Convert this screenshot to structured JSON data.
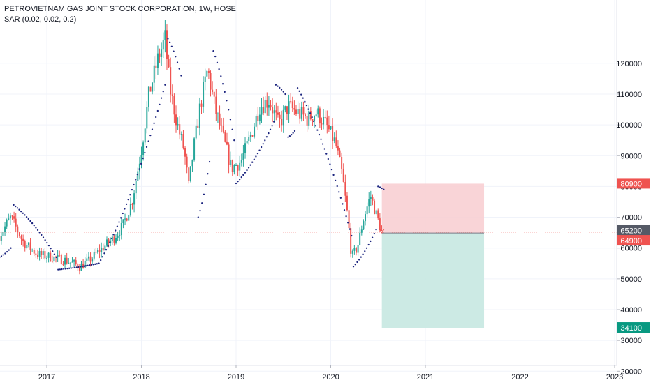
{
  "header": {
    "title": "PETROVIETNAM GAS JOINT STOCK CORPORATION, 1W, HOSE",
    "indicator": "SAR (0.02, 0.02, 0.2)"
  },
  "colors": {
    "up": "#26a69a",
    "down": "#ef5350",
    "sar": "#1a237e",
    "stop_fill": "#f8cdd0",
    "target_fill": "#c6e8e1",
    "grid": "#f0f3fa",
    "axis_text": "#131722",
    "red_tag": "#ef5350",
    "gray_tag": "#555a66",
    "green_tag": "#089981",
    "price_line": "#ef5350"
  },
  "chart_data": {
    "type": "candlestick",
    "title": "PETROVIETNAM GAS JOINT STOCK CORPORATION, 1W, HOSE",
    "x_ticks": [
      "2017",
      "2018",
      "2019",
      "2020",
      "2021",
      "2022",
      "2023"
    ],
    "x_tick_years": [
      2017,
      2018,
      2019,
      2020,
      2021,
      2022,
      2023
    ],
    "x_range": [
      2016.5,
      2023.05
    ],
    "y_ticks": [
      20000,
      30000,
      40000,
      50000,
      60000,
      70000,
      80000,
      90000,
      100000,
      110000,
      120000
    ],
    "y_tick_labels": [
      "20000",
      "30000",
      "40000",
      "50000",
      "60000",
      "70000",
      "80000",
      "90000",
      "100000",
      "110000",
      "120000"
    ],
    "ylim": [
      10000,
      130000
    ],
    "price_keypoints": [
      [
        2016.5,
        64000
      ],
      [
        2016.62,
        70000
      ],
      [
        2016.75,
        62000
      ],
      [
        2016.9,
        58000
      ],
      [
        2017.05,
        57000
      ],
      [
        2017.2,
        56000
      ],
      [
        2017.35,
        54000
      ],
      [
        2017.45,
        56000
      ],
      [
        2017.55,
        59000
      ],
      [
        2017.7,
        63000
      ],
      [
        2017.8,
        67000
      ],
      [
        2017.9,
        75000
      ],
      [
        2018.0,
        92000
      ],
      [
        2018.08,
        110000
      ],
      [
        2018.18,
        122000
      ],
      [
        2018.25,
        128000
      ],
      [
        2018.3,
        112000
      ],
      [
        2018.38,
        100000
      ],
      [
        2018.45,
        92000
      ],
      [
        2018.5,
        80000
      ],
      [
        2018.55,
        92000
      ],
      [
        2018.62,
        106000
      ],
      [
        2018.7,
        118000
      ],
      [
        2018.78,
        105000
      ],
      [
        2018.88,
        94000
      ],
      [
        2018.95,
        86000
      ],
      [
        2019.05,
        88000
      ],
      [
        2019.15,
        96000
      ],
      [
        2019.25,
        106000
      ],
      [
        2019.35,
        108000
      ],
      [
        2019.45,
        100000
      ],
      [
        2019.55,
        106000
      ],
      [
        2019.65,
        104000
      ],
      [
        2019.75,
        102000
      ],
      [
        2019.85,
        104000
      ],
      [
        2019.95,
        100000
      ],
      [
        2020.05,
        94000
      ],
      [
        2020.12,
        84000
      ],
      [
        2020.18,
        70000
      ],
      [
        2020.22,
        57000
      ],
      [
        2020.28,
        60000
      ],
      [
        2020.35,
        70000
      ],
      [
        2020.42,
        77000
      ],
      [
        2020.5,
        69000
      ],
      [
        2020.54,
        65200
      ]
    ],
    "sar_segments": [
      {
        "range": [
          2016.5,
          2016.62
        ],
        "from": 57000,
        "to": 60000,
        "side": "below"
      },
      {
        "range": [
          2016.65,
          2017.1
        ],
        "from": 74000,
        "to": 57000,
        "side": "above"
      },
      {
        "range": [
          2017.12,
          2017.55
        ],
        "from": 53000,
        "to": 55000,
        "side": "below"
      },
      {
        "range": [
          2017.55,
          2018.25
        ],
        "from": 55000,
        "to": 113000,
        "side": "below"
      },
      {
        "range": [
          2018.28,
          2018.42
        ],
        "from": 128000,
        "to": 116000,
        "side": "above"
      },
      {
        "range": [
          2018.6,
          2018.72
        ],
        "from": 70000,
        "to": 88000,
        "side": "below"
      },
      {
        "range": [
          2018.76,
          2018.98
        ],
        "from": 124000,
        "to": 95000,
        "side": "above"
      },
      {
        "range": [
          2019.0,
          2019.4
        ],
        "from": 81000,
        "to": 101000,
        "side": "below"
      },
      {
        "range": [
          2019.42,
          2019.52
        ],
        "from": 113000,
        "to": 110000,
        "side": "above"
      },
      {
        "range": [
          2019.55,
          2019.62
        ],
        "from": 96000,
        "to": 98000,
        "side": "below"
      },
      {
        "range": [
          2019.65,
          2020.22
        ],
        "from": 112000,
        "to": 64000,
        "side": "above"
      },
      {
        "range": [
          2020.24,
          2020.48
        ],
        "from": 54000,
        "to": 66000,
        "side": "below"
      },
      {
        "range": [
          2020.5,
          2020.56
        ],
        "from": 80000,
        "to": 79000,
        "side": "above"
      }
    ],
    "position": {
      "x_start": 2020.54,
      "x_end": 2021.62,
      "stop": 80900,
      "entry": 64900,
      "target": 34100
    },
    "current_price": 65200,
    "price_tags": [
      {
        "label": "80900",
        "value": 80900,
        "kind": "red"
      },
      {
        "label": "65200",
        "value": 65200,
        "kind": "gray"
      },
      {
        "label": "64900",
        "value": 64900,
        "kind": "red"
      },
      {
        "label": "34100",
        "value": 34100,
        "kind": "green"
      }
    ]
  }
}
